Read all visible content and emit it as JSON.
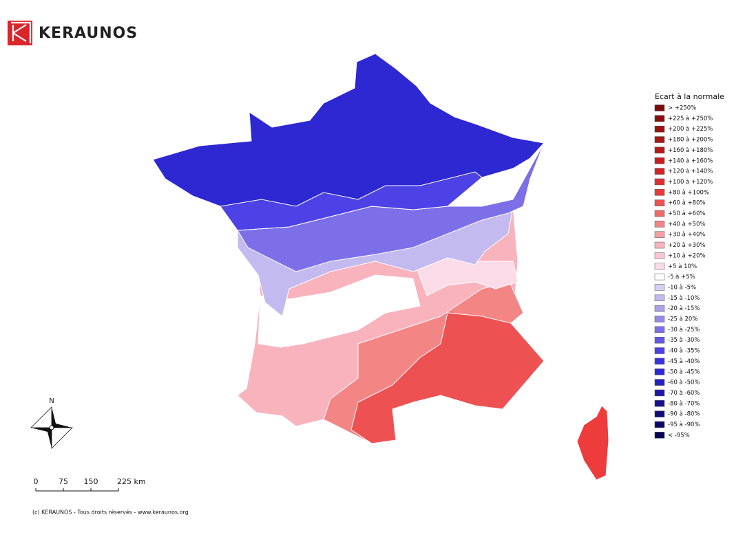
{
  "logo": {
    "text": "KERAUNOS"
  },
  "legend": {
    "title": "Ecart à la normale",
    "entries": [
      {
        "label": "> +250%",
        "color": "#7a0a0a"
      },
      {
        "label": "+225 à +250%",
        "color": "#8b0e0e"
      },
      {
        "label": "+200 à +225%",
        "color": "#9a1212"
      },
      {
        "label": "+180 à +200%",
        "color": "#a81616"
      },
      {
        "label": "+160 à +180%",
        "color": "#b81a1a"
      },
      {
        "label": "+140 à +160%",
        "color": "#c51f1f"
      },
      {
        "label": "+120 à +140%",
        "color": "#d22626"
      },
      {
        "label": "+100 à +120%",
        "color": "#de2e2e"
      },
      {
        "label": "+80 à +100%",
        "color": "#e83a3a"
      },
      {
        "label": "+60 à +80%",
        "color": "#ee5151"
      },
      {
        "label": "+50 à +60%",
        "color": "#f06a6a"
      },
      {
        "label": "+40 à +50%",
        "color": "#f38585"
      },
      {
        "label": "+30 à +40%",
        "color": "#f6a0a5"
      },
      {
        "label": "+20 à +30%",
        "color": "#f8b3bd"
      },
      {
        "label": "+10 à +20%",
        "color": "#fac6d2"
      },
      {
        "label": "+5 à 10%",
        "color": "#fcdbe8"
      },
      {
        "label": "-5 à +5%",
        "color": "#ffffff"
      },
      {
        "label": "-10 à -5%",
        "color": "#d8d0f4"
      },
      {
        "label": "-15 à -10%",
        "color": "#c3baf0"
      },
      {
        "label": "-20 à -15%",
        "color": "#aba1ec"
      },
      {
        "label": "-25 à 20%",
        "color": "#9488ea"
      },
      {
        "label": "-30 à -25%",
        "color": "#7c6fe8"
      },
      {
        "label": "-35 à -30%",
        "color": "#6458e8"
      },
      {
        "label": "-40 à -35%",
        "color": "#4c42e5"
      },
      {
        "label": "-45 à -40%",
        "color": "#3a32df"
      },
      {
        "label": "-50 à -45%",
        "color": "#2d28d2"
      },
      {
        "label": "-60 à -50%",
        "color": "#2520c0"
      },
      {
        "label": "-70 à -60%",
        "color": "#1d18a8"
      },
      {
        "label": "-80 à -70%",
        "color": "#16128f"
      },
      {
        "label": "-90 à -80%",
        "color": "#100d7a"
      },
      {
        "label": "-95 à -90%",
        "color": "#0b0968"
      },
      {
        "label": "< -95%",
        "color": "#070656"
      }
    ]
  },
  "compass": {
    "label": "N"
  },
  "scale": {
    "labels": [
      "0",
      "75",
      "150",
      "225 km"
    ]
  },
  "footer": "(c) KERAUNOS - Tous droits réservés - www.keraunos.org"
}
